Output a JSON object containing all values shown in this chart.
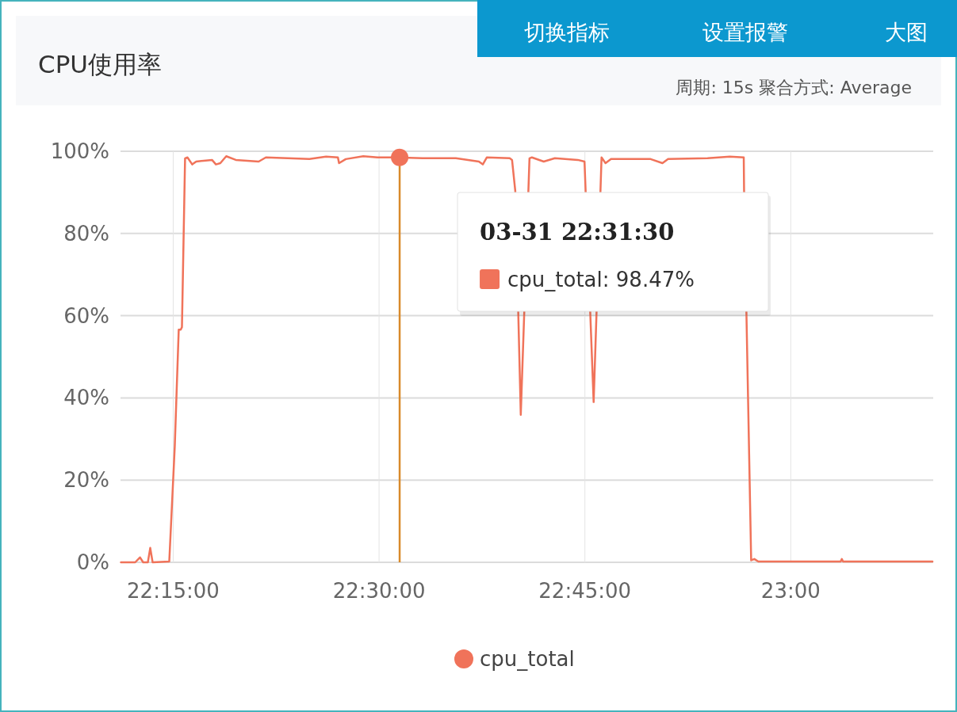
{
  "chart_data": {
    "type": "line",
    "title": "CPU使用率",
    "subtitle": "周期: 15s  聚合方式: Average",
    "annotations": [
      "切换指标",
      "设置报警",
      "大图",
      "03-31 22:31:30",
      "cpu_total: 98.47%"
    ],
    "x": [
      22.1865,
      22.2038,
      22.2096,
      22.2135,
      22.2192,
      22.2221,
      22.225,
      22.2452,
      22.2519,
      22.2567,
      22.2591,
      22.2606,
      22.2644,
      22.2673,
      22.2731,
      22.2779,
      22.2971,
      22.3019,
      22.3072,
      22.3144,
      22.326,
      22.3538,
      22.3625,
      22.4154,
      22.4356,
      22.45,
      22.4514,
      22.4596,
      22.4808,
      22.4981,
      22.525,
      22.5529,
      22.5933,
      22.6212,
      22.626,
      22.6308,
      22.6587,
      22.6615,
      22.6654,
      22.6721,
      22.6788,
      22.6827,
      22.6856,
      22.7,
      22.7135,
      22.7413,
      22.7495,
      22.7548,
      22.7606,
      22.765,
      22.7702,
      22.775,
      22.7817,
      22.8298,
      22.8442,
      22.851,
      22.899,
      22.926,
      22.9429,
      22.9433,
      22.9519,
      22.9558,
      22.9606,
      22.9659,
      23.0606,
      23.062,
      23.0635,
      23.1721
    ],
    "series": [
      {
        "name": "cpu_total",
        "color": "#f0735a",
        "values": [
          0,
          0,
          1.2,
          0,
          0,
          3.5,
          0,
          0.2,
          28.3,
          56.6,
          56.6,
          57.2,
          98.3,
          98.5,
          96.8,
          97.5,
          97.9,
          96.8,
          97.1,
          98.8,
          97.9,
          97.5,
          98.5,
          98.1,
          98.7,
          98.5,
          97.1,
          98.1,
          98.8,
          98.5,
          98.5,
          98.3,
          98.3,
          97.5,
          96.8,
          98.5,
          98.3,
          97.9,
          90.4,
          35.9,
          null,
          98.3,
          98.5,
          97.5,
          98.3,
          97.9,
          97.5,
          null,
          39.0,
          null,
          98.5,
          97.1,
          98.1,
          98.1,
          97.1,
          98.1,
          98.3,
          98.7,
          98.5,
          90.4,
          0.5,
          0.8,
          0.2,
          0.2,
          0.2,
          0.8,
          0.2,
          0.2
        ]
      }
    ],
    "xlim": [
      22.186,
      23.173
    ],
    "xticks": [
      {
        "value": 22.25,
        "label": "22:15:00"
      },
      {
        "value": 22.5,
        "label": "22:30:00"
      },
      {
        "value": 22.75,
        "label": "22:45:00"
      },
      {
        "value": 23,
        "label": "23:00"
      }
    ],
    "ylim": [
      0,
      100
    ],
    "yticks": [
      {
        "value": 0,
        "label": "0%"
      },
      {
        "value": 20,
        "label": "20%"
      },
      {
        "value": 40,
        "label": "40%"
      },
      {
        "value": 60,
        "label": "60%"
      },
      {
        "value": 80,
        "label": "80%"
      },
      {
        "value": 100,
        "label": "100%"
      }
    ],
    "ref_lines": [
      {
        "axis": "x",
        "value": 22.525,
        "color": "#d98a2b"
      }
    ],
    "grid": true,
    "legend": "bottom"
  }
}
